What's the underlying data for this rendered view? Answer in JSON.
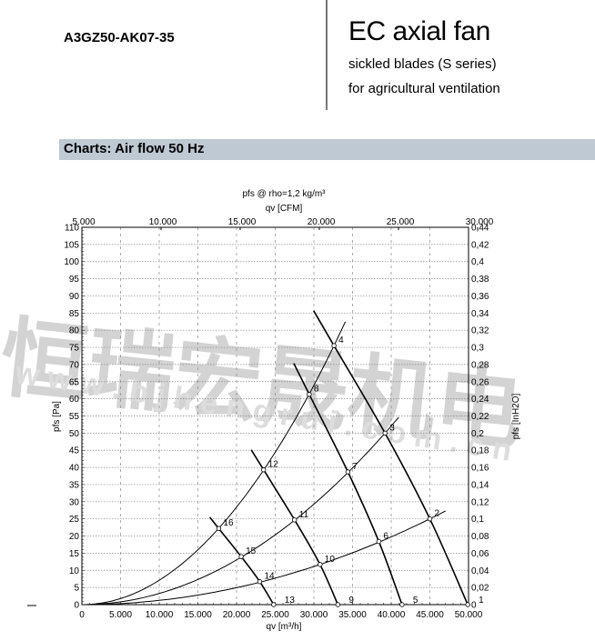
{
  "header": {
    "model": "A3GZ50-AK07-35",
    "title": "EC axial fan",
    "subtitle_1": "sickled blades (S series)",
    "subtitle_2": "for agricultural ventilation"
  },
  "section": {
    "title": "Charts: Air flow 50 Hz"
  },
  "watermark": {
    "text_cn": "恒瑞宏晟机电",
    "text_url": "w w w . b j h e n g r u i . c o m . c n"
  },
  "chart_data": {
    "type": "line",
    "title": "pfs @ rho=1,2 kg/m³",
    "xlabel": "qv [m³/h]",
    "ylabel": "pfs [Pa]",
    "x2label": "qv [CFM]",
    "y2label": "pfs [InH2O]",
    "xlim": [
      0,
      50000
    ],
    "ylim": [
      0,
      110
    ],
    "y2lim": [
      0,
      0.44
    ],
    "grid": true,
    "x_ticks": [
      "0",
      "5.000",
      "10.000",
      "15.000",
      "20.000",
      "25.000",
      "30.000",
      "35.000",
      "40.000",
      "45.000",
      "50.000"
    ],
    "y_ticks": [
      "0",
      "5",
      "10",
      "15",
      "20",
      "25",
      "30",
      "35",
      "40",
      "45",
      "50",
      "55",
      "60",
      "65",
      "70",
      "75",
      "80",
      "85",
      "90",
      "95",
      "100",
      "105",
      "110"
    ],
    "x2_ticks": [
      "5.000",
      "10.000",
      "15.000",
      "20.000",
      "25.000",
      "30.000"
    ],
    "y2_ticks": [
      "0",
      "0,02",
      "0,04",
      "0,06",
      "0,08",
      "0,1",
      "0,12",
      "0,14",
      "0,16",
      "0,18",
      "0,2",
      "0,22",
      "0,24",
      "0,26",
      "0,28",
      "0,3",
      "0,32",
      "0,34",
      "0,36",
      "0,38",
      "0,4",
      "0,42",
      "0,44"
    ],
    "points": [
      {
        "label": "1",
        "q": 49900,
        "p": 0
      },
      {
        "label": "2",
        "q": 45000,
        "p": 25
      },
      {
        "label": "3",
        "q": 39200,
        "p": 50
      },
      {
        "label": "4",
        "q": 32600,
        "p": 75.5
      },
      {
        "label": "5",
        "q": 41400,
        "p": 0
      },
      {
        "label": "6",
        "q": 38400,
        "p": 18.4
      },
      {
        "label": "7",
        "q": 34400,
        "p": 38.7
      },
      {
        "label": "8",
        "q": 29400,
        "p": 61.3
      },
      {
        "label": "9",
        "q": 33100,
        "p": 0
      },
      {
        "label": "10",
        "q": 30800,
        "p": 11.7
      },
      {
        "label": "11",
        "q": 27500,
        "p": 24.7
      },
      {
        "label": "12",
        "q": 23500,
        "p": 39.3
      },
      {
        "label": "13",
        "q": 24800,
        "p": 0
      },
      {
        "label": "14",
        "q": 23000,
        "p": 6.7
      },
      {
        "label": "15",
        "q": 20600,
        "p": 14
      },
      {
        "label": "16",
        "q": 17700,
        "p": 22.2
      }
    ],
    "fan_curves": [
      [
        "1",
        "2",
        "3",
        "4"
      ],
      [
        "5",
        "6",
        "7",
        "8"
      ],
      [
        "9",
        "10",
        "11",
        "12"
      ],
      [
        "13",
        "14",
        "15",
        "16"
      ]
    ],
    "system_curves": [
      [
        "14",
        "10",
        "6",
        "2"
      ],
      [
        "15",
        "11",
        "7",
        "3"
      ],
      [
        "16",
        "12",
        "8",
        "4"
      ]
    ],
    "colors": {
      "curve": "#000000",
      "grid": "#888888",
      "banner": "#bec9d4"
    }
  }
}
